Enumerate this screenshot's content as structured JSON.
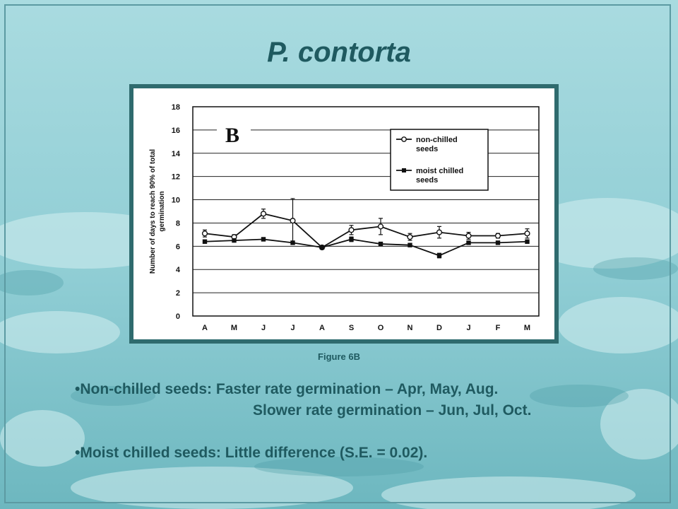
{
  "slide": {
    "title": "P. contorta",
    "caption": "Figure 6B",
    "bullets": [
      {
        "lines": [
          "•Non-chilled seeds: Faster rate germination – Apr, May, Aug.",
          "Slower rate germination – Jun, Jul, Oct."
        ]
      },
      {
        "lines": [
          "•Moist chilled seeds: Little difference (S.E. = 0.02)."
        ]
      }
    ]
  },
  "colors": {
    "background": "#7fc3cb",
    "text": "#1f5a60",
    "chart_border": "#2f6b6e"
  },
  "chart_data": {
    "type": "line",
    "panel_label": "B",
    "ylabel": "Number of days to reach 90% of total germination",
    "xlabel": "",
    "ylim": [
      0,
      18
    ],
    "yticks": [
      0,
      2,
      4,
      6,
      8,
      10,
      12,
      14,
      16,
      18
    ],
    "categories": [
      "A",
      "M",
      "J",
      "J",
      "A",
      "S",
      "O",
      "N",
      "D",
      "J",
      "F",
      "M"
    ],
    "grid": true,
    "legend_position": "top-right",
    "series": [
      {
        "name": "non-chilled seeds",
        "marker": "open-circle",
        "values": [
          7.1,
          6.8,
          8.8,
          8.2,
          5.9,
          7.4,
          7.7,
          6.8,
          7.2,
          6.9,
          6.9,
          7.1
        ],
        "errors": [
          0.3,
          0.2,
          0.4,
          1.9,
          0.1,
          0.4,
          0.7,
          0.3,
          0.5,
          0.3,
          0.2,
          0.4
        ]
      },
      {
        "name": "moist chilled seeds",
        "marker": "filled-square",
        "values": [
          6.4,
          6.5,
          6.6,
          6.3,
          5.9,
          6.6,
          6.2,
          6.1,
          5.2,
          6.3,
          6.3,
          6.4
        ],
        "errors": [
          0.1,
          0.1,
          0.1,
          0.1,
          0.1,
          0.2,
          0.1,
          0.1,
          0.2,
          0.1,
          0.1,
          0.1
        ]
      }
    ]
  }
}
